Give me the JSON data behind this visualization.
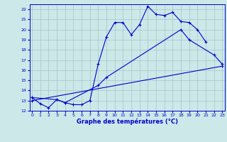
{
  "title": "Graphe des températures (°C)",
  "bg_color": "#cce8e8",
  "grid_color": "#aacccc",
  "line_color": "#0000cc",
  "xmin": 0,
  "xmax": 23,
  "ymin": 12,
  "ymax": 22,
  "line1_x": [
    0,
    1,
    2,
    3,
    4,
    5,
    6,
    7,
    8,
    9,
    10,
    11,
    12,
    13,
    14,
    15,
    16,
    17,
    18,
    19,
    20,
    21
  ],
  "line1_y": [
    13.3,
    12.7,
    12.3,
    13.1,
    12.8,
    12.6,
    12.6,
    13.0,
    16.6,
    19.3,
    20.7,
    20.7,
    19.5,
    20.5,
    22.3,
    21.5,
    21.4,
    21.7,
    20.8,
    20.7,
    20.0,
    18.8
  ],
  "line2_x": [
    0,
    3,
    4,
    8,
    9,
    18,
    19,
    22,
    23
  ],
  "line2_y": [
    13.3,
    13.1,
    12.8,
    14.5,
    15.3,
    20.0,
    19.0,
    17.5,
    16.6
  ],
  "line3_x": [
    0,
    23
  ],
  "line3_y": [
    13.0,
    16.4
  ]
}
